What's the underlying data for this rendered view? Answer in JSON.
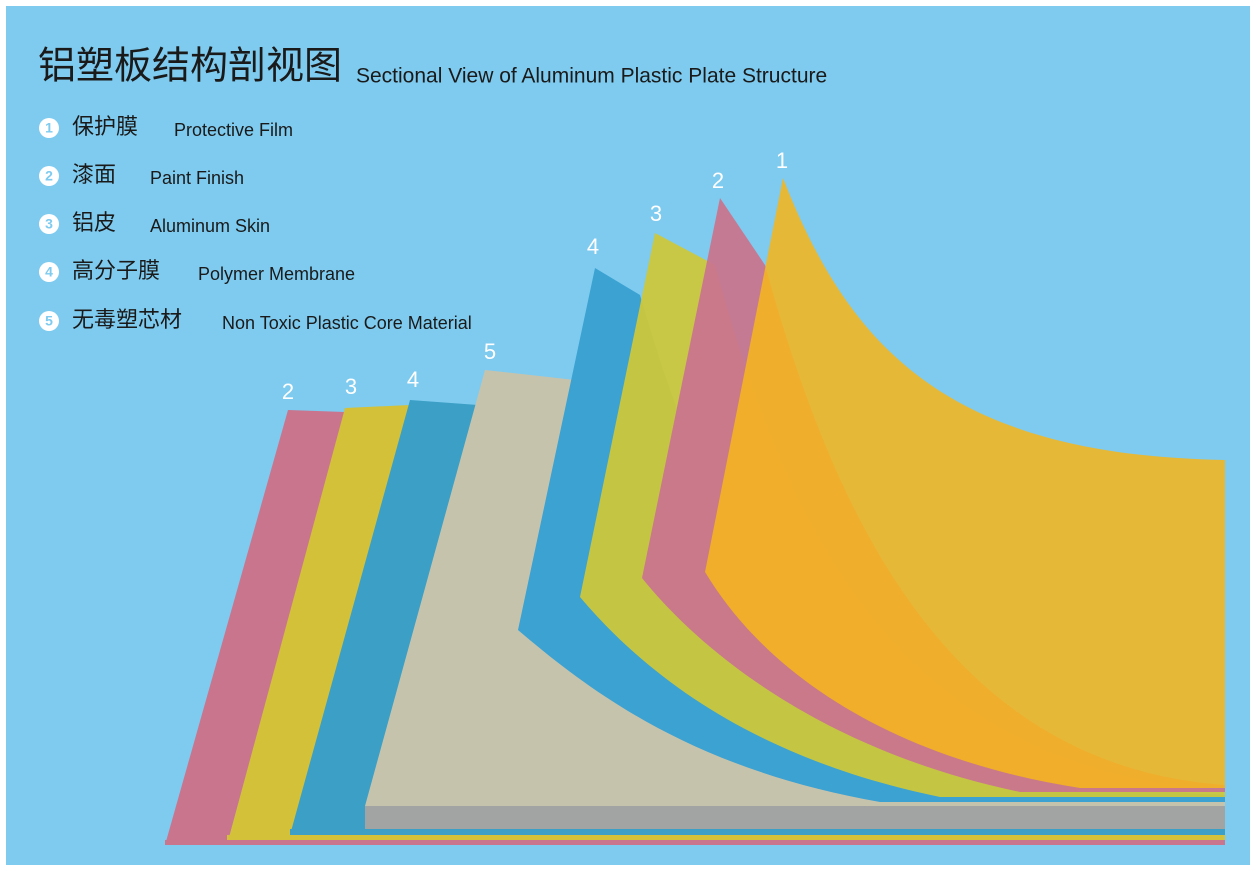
{
  "header": {
    "title": "铝塑板结构剖视图",
    "subtitle": "Sectional View of Aluminum Plastic Plate Structure"
  },
  "legend": [
    {
      "number": "1",
      "name_cn": "保护膜",
      "name_en": "Protective Film"
    },
    {
      "number": "2",
      "name_cn": "漆面",
      "name_en": "Paint Finish"
    },
    {
      "number": "3",
      "name_cn": "铝皮",
      "name_en": "Aluminum Skin"
    },
    {
      "number": "4",
      "name_cn": "高分子膜",
      "name_en": "Polymer Membrane"
    },
    {
      "number": "5",
      "name_cn": "无毒塑芯材",
      "name_en": "Non Toxic Plastic Core Material"
    }
  ],
  "layer_labels": [
    "2",
    "3",
    "4",
    "5",
    "4",
    "3",
    "2",
    "1"
  ]
}
